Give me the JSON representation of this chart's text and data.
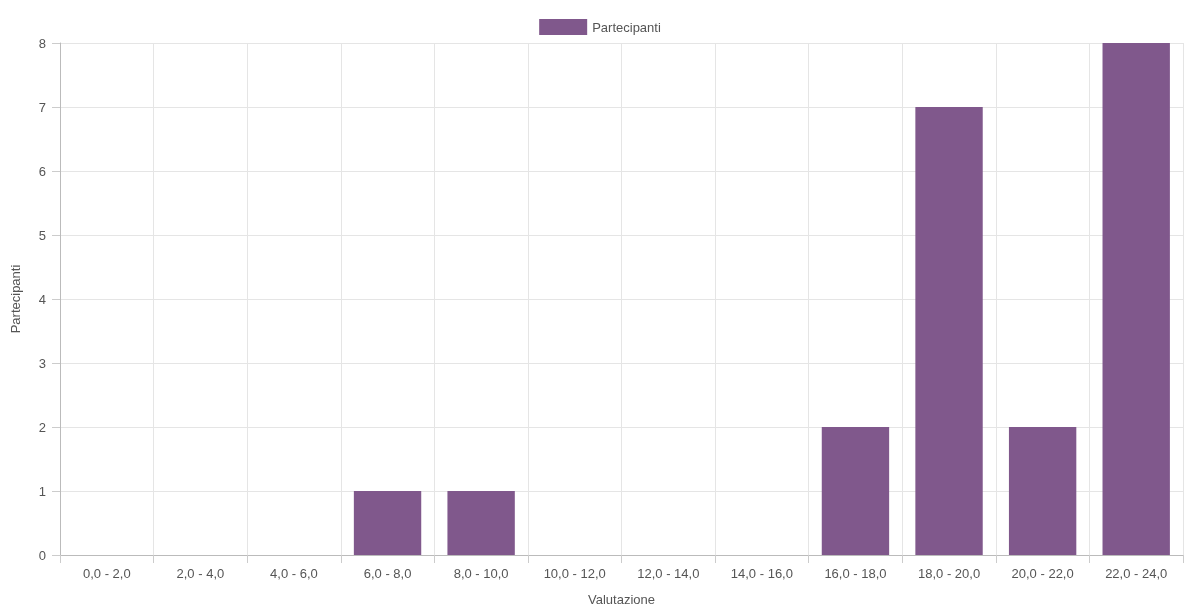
{
  "chart_data": {
    "type": "bar",
    "xlabel": "Valutazione",
    "ylabel": "Partecipanti",
    "categories": [
      "0,0 - 2,0",
      "2,0 - 4,0",
      "4,0 - 6,0",
      "6,0 - 8,0",
      "8,0 - 10,0",
      "10,0 - 12,0",
      "12,0 - 14,0",
      "14,0 - 16,0",
      "16,0 - 18,0",
      "18,0 - 20,0",
      "20,0 - 22,0",
      "22,0 - 24,0"
    ],
    "series": [
      {
        "name": "Partecipanti",
        "color": "#80588c",
        "values": [
          0,
          0,
          0,
          1,
          1,
          0,
          0,
          0,
          2,
          7,
          2,
          8
        ]
      }
    ],
    "ylim": [
      0,
      8
    ],
    "yticks": [
      0,
      1,
      2,
      3,
      4,
      5,
      6,
      7,
      8
    ],
    "grid": true,
    "legend": "top"
  }
}
